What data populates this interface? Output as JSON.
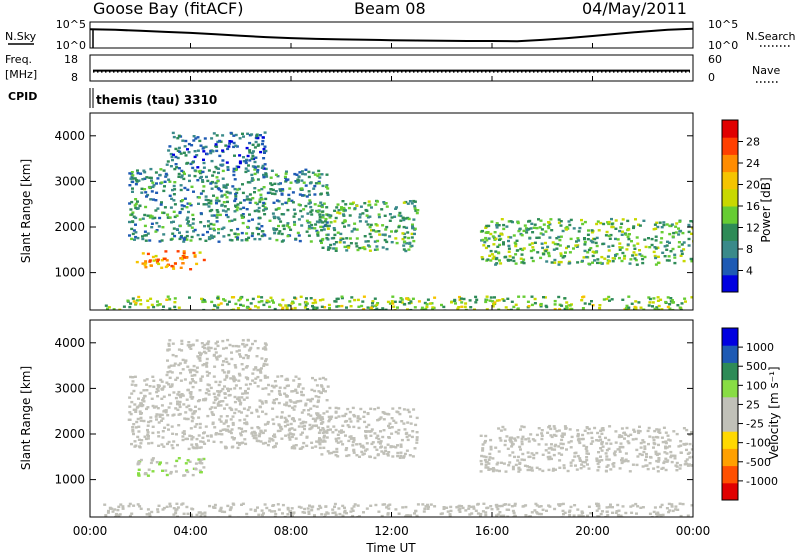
{
  "header": {
    "station": "Goose Bay (fitACF)",
    "beam": "Beam 08",
    "date": "04/May/2011"
  },
  "noise_panel": {
    "left_label": "N.Sky",
    "left_ticks": [
      "10^5",
      "10^0"
    ],
    "right_ticks": [
      "10^5",
      "10^0"
    ],
    "right_label": "N.Search",
    "sky_trace": [
      [
        0,
        0.72
      ],
      [
        1,
        0.7
      ],
      [
        2,
        0.66
      ],
      [
        3,
        0.62
      ],
      [
        4,
        0.58
      ],
      [
        5,
        0.53
      ],
      [
        6,
        0.47
      ],
      [
        7,
        0.42
      ],
      [
        8,
        0.38
      ],
      [
        9,
        0.35
      ],
      [
        10,
        0.33
      ],
      [
        11,
        0.32
      ],
      [
        12,
        0.3
      ],
      [
        13,
        0.29
      ],
      [
        14,
        0.28
      ],
      [
        15,
        0.27
      ],
      [
        16,
        0.27
      ],
      [
        17,
        0.26
      ],
      [
        18,
        0.31
      ],
      [
        19,
        0.38
      ],
      [
        20,
        0.46
      ],
      [
        21,
        0.55
      ],
      [
        22,
        0.63
      ],
      [
        23,
        0.7
      ],
      [
        24,
        0.74
      ]
    ]
  },
  "freq_panel": {
    "left_label_top": "Freq.",
    "left_label_unit": "[MHz]",
    "left_ticks": [
      "18",
      "8"
    ],
    "right_ticks": [
      "60",
      "0"
    ],
    "right_label": "Nave",
    "freq_level": 0.4,
    "nave_level": 0.35
  },
  "cpid": {
    "label": "CPID",
    "value": "themis (tau) 3310"
  },
  "colorbars": {
    "power": {
      "label": "Power [dB]",
      "ticks": [
        "28",
        "24",
        "20",
        "16",
        "12",
        "8",
        "4"
      ],
      "colors": [
        "#0000e0",
        "#1e5ab4",
        "#3a8a8a",
        "#2e8b57",
        "#66cc33",
        "#c8d800",
        "#f5c400",
        "#ff8c00",
        "#ff4000",
        "#e00000"
      ]
    },
    "velocity": {
      "label": "Velocity [m s⁻¹]",
      "ticks": [
        "1000",
        "500",
        "100",
        "25",
        "-25",
        "-100",
        "-500",
        "-1000"
      ],
      "colors": [
        "#e00000",
        "#ff5000",
        "#ffa000",
        "#ffd800",
        "#c0c0b8",
        "#c0c0b8",
        "#88dd44",
        "#2e8b57",
        "#1e5ab4",
        "#0000e0"
      ]
    }
  },
  "axes": {
    "ylabel": "Slant Range [km]",
    "xlabel": "Time UT",
    "yticks": [
      "4000",
      "3000",
      "2000",
      "1000"
    ],
    "xticks": [
      "00:00",
      "04:00",
      "08:00",
      "12:00",
      "16:00",
      "20:00",
      "00:00"
    ]
  },
  "chart_data": [
    {
      "type": "heatmap",
      "panel": "power",
      "x_unit": "hours UT",
      "y_unit": "km",
      "xlim": [
        0,
        24
      ],
      "ylim": [
        180,
        4500
      ],
      "clim_dB": [
        0,
        30
      ],
      "regions": [
        {
          "x": [
            1.8,
            4.5
          ],
          "y": [
            1100,
            1500
          ],
          "value": 22
        },
        {
          "x": [
            1.5,
            9.5
          ],
          "y": [
            1700,
            3300
          ],
          "value": 9
        },
        {
          "x": [
            3.0,
            7.0
          ],
          "y": [
            3300,
            4100
          ],
          "value": 6
        },
        {
          "x": [
            9.0,
            13.0
          ],
          "y": [
            1500,
            2600
          ],
          "value": 11
        },
        {
          "x": [
            15.5,
            24.0
          ],
          "y": [
            1200,
            2200
          ],
          "value": 12
        },
        {
          "x": [
            0.5,
            24.0
          ],
          "y": [
            180,
            500
          ],
          "value": 14
        }
      ]
    },
    {
      "type": "heatmap",
      "panel": "velocity",
      "x_unit": "hours UT",
      "y_unit": "km",
      "xlim": [
        0,
        24
      ],
      "ylim": [
        180,
        4500
      ],
      "clim_ms": [
        -1000,
        1000
      ],
      "regions": [
        {
          "x": [
            1.8,
            4.5
          ],
          "y": [
            1100,
            1500
          ],
          "value": 200
        },
        {
          "x": [
            1.5,
            9.5
          ],
          "y": [
            1700,
            3300
          ],
          "value": 0
        },
        {
          "x": [
            3.0,
            7.0
          ],
          "y": [
            3300,
            4100
          ],
          "value": 0
        },
        {
          "x": [
            9.0,
            13.0
          ],
          "y": [
            1500,
            2600
          ],
          "value": -20
        },
        {
          "x": [
            15.5,
            24.0
          ],
          "y": [
            1200,
            2200
          ],
          "value": 0
        },
        {
          "x": [
            0.5,
            24.0
          ],
          "y": [
            180,
            500
          ],
          "value": -80
        }
      ]
    }
  ]
}
